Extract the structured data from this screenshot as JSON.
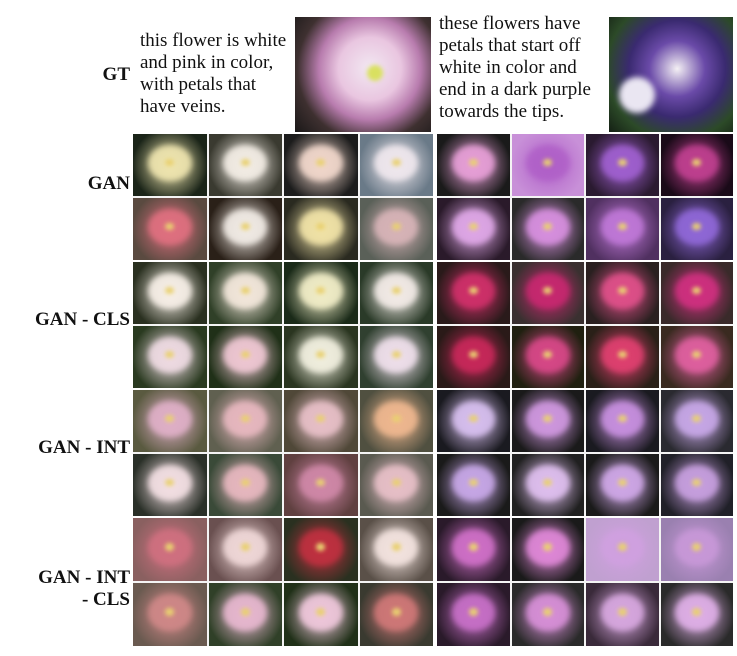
{
  "gt": {
    "label": "GT",
    "captions": [
      "this flower is white and pink in color, with petals that have veins.",
      "these flowers have petals that start off white in color and end in a dark purple towards the tips."
    ]
  },
  "rows": [
    {
      "id": "gan",
      "label_lines": [
        "GAN"
      ]
    },
    {
      "id": "gan-cls",
      "label_lines": [
        "GAN - CLS"
      ]
    },
    {
      "id": "gan-int",
      "label_lines": [
        "GAN - INT"
      ]
    },
    {
      "id": "gan-int-cls",
      "label_lines": [
        "GAN - INT",
        "- CLS"
      ]
    }
  ],
  "palettes": {
    "gan": {
      "left": [
        [
          "#1a2418",
          "#f0e6b0"
        ],
        [
          "#3a3a30",
          "#f4eee6"
        ],
        [
          "#1c1c1c",
          "#f2d8cc"
        ],
        [
          "#6a7a88",
          "#f0e8ee"
        ],
        [
          "#5a4a40",
          "#e07080"
        ],
        [
          "#2a2018",
          "#f2ece6"
        ],
        [
          "#2a2a20",
          "#f2e4a8"
        ],
        [
          "#5a6058",
          "#d8b4b8"
        ]
      ],
      "right": [
        [
          "#1a1a1a",
          "#e8a0d8"
        ],
        [
          "#c890d8",
          "#b060c8"
        ],
        [
          "#2a1a30",
          "#a060d0"
        ],
        [
          "#1a0a18",
          "#c04090"
        ],
        [
          "#2a1a2a",
          "#e0a8e8"
        ],
        [
          "#2a2a2a",
          "#d890e0"
        ],
        [
          "#503060",
          "#c078d8"
        ],
        [
          "#2a2040",
          "#9068d8"
        ]
      ]
    },
    "gan-cls": {
      "left": [
        [
          "#2a3020",
          "#f8f0e8"
        ],
        [
          "#304028",
          "#f4e8dc"
        ],
        [
          "#1a2a18",
          "#f2eec8"
        ],
        [
          "#2a3a28",
          "#f4ece8"
        ],
        [
          "#2a3a20",
          "#f0dce4"
        ],
        [
          "#203018",
          "#f0c8d4"
        ],
        [
          "#2a3520",
          "#f2f0e0"
        ],
        [
          "#304030",
          "#f0e0ec"
        ]
      ],
      "right": [
        [
          "#2a1a1a",
          "#d0306a"
        ],
        [
          "#3a3030",
          "#c82870"
        ],
        [
          "#2a2020",
          "#e0508a"
        ],
        [
          "#3a2a2a",
          "#d03080"
        ],
        [
          "#2a1a18",
          "#c8285a"
        ],
        [
          "#202010",
          "#d84888"
        ],
        [
          "#2a2018",
          "#e04070"
        ],
        [
          "#3a2a20",
          "#e060a0"
        ]
      ]
    },
    "gan-int": {
      "left": [
        [
          "#5a5a40",
          "#e0b0c8"
        ],
        [
          "#606050",
          "#e8b8c0"
        ],
        [
          "#504838",
          "#e8c0c8"
        ],
        [
          "#505040",
          "#f0b890"
        ],
        [
          "#2a3028",
          "#f4e0e4"
        ],
        [
          "#3a4a38",
          "#e8b8c0"
        ],
        [
          "#604040",
          "#d088a8"
        ],
        [
          "#5a5a50",
          "#e8c0c8"
        ]
      ],
      "right": [
        [
          "#1a1a20",
          "#d8c0f0"
        ],
        [
          "#1a1a1a",
          "#d098e0"
        ],
        [
          "#1a1a20",
          "#c890e0"
        ],
        [
          "#2a2a30",
          "#c8a8e8"
        ],
        [
          "#1a1a1a",
          "#c8a8e8"
        ],
        [
          "#202020",
          "#e0c0f0"
        ],
        [
          "#1a1a1a",
          "#d0a8e8"
        ],
        [
          "#202028",
          "#c8a0e0"
        ]
      ]
    },
    "gan-int-cls": {
      "left": [
        [
          "#8a6060",
          "#d07080"
        ],
        [
          "#6a5050",
          "#f0d8d8"
        ],
        [
          "#2a3020",
          "#c03040"
        ],
        [
          "#5a5048",
          "#f4e4e0"
        ],
        [
          "#6a5a50",
          "#d08888"
        ],
        [
          "#304028",
          "#e8b8d0"
        ],
        [
          "#203018",
          "#f0c8dc"
        ],
        [
          "#3a3a30",
          "#d07878"
        ]
      ],
      "right": [
        [
          "#2a1a2a",
          "#d070c8"
        ],
        [
          "#1a1a1a",
          "#e088d8"
        ],
        [
          "#c0a0d0",
          "#d0a0e0"
        ],
        [
          "#9a80b0",
          "#c898d8"
        ],
        [
          "#2a1a2a",
          "#c870c8"
        ],
        [
          "#2a2a2a",
          "#d890d8"
        ],
        [
          "#3a2a3a",
          "#d8a8e0"
        ],
        [
          "#2a2a2a",
          "#e0b0e8"
        ]
      ]
    }
  }
}
